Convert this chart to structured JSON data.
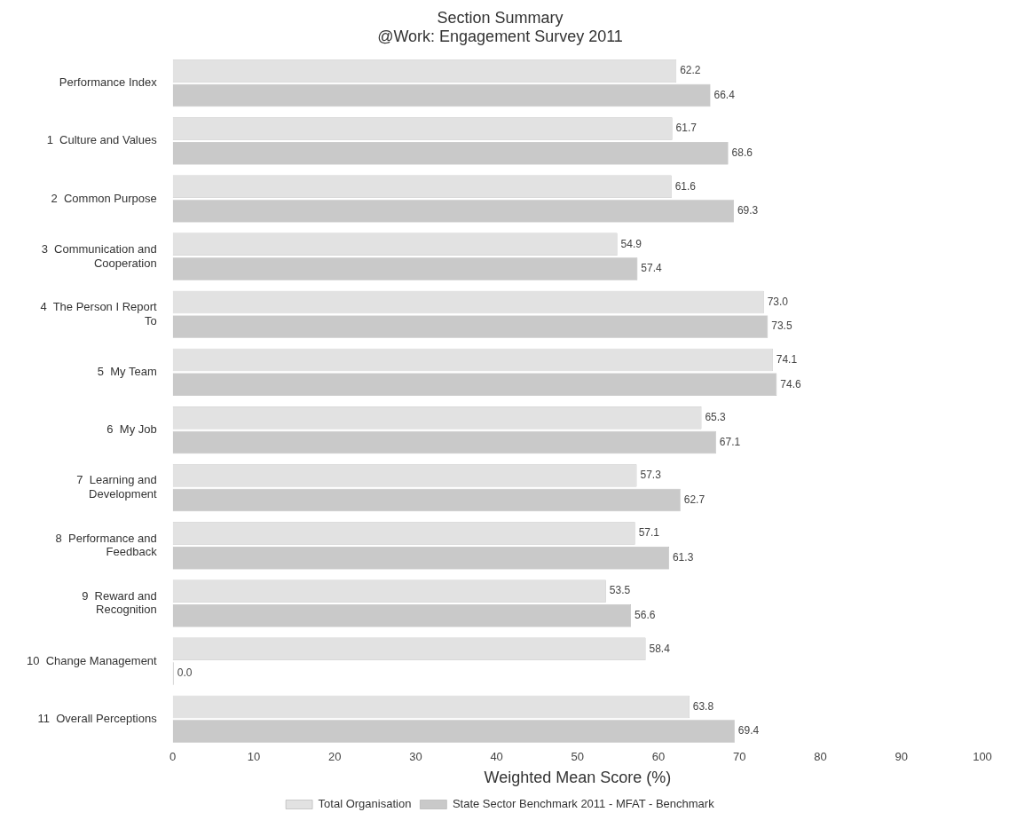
{
  "chart_data": {
    "type": "bar",
    "orientation": "horizontal",
    "title": "Section Summary",
    "subtitle": "@Work: Engagement Survey 2011",
    "xlabel": "Weighted Mean Score (%)",
    "categories": [
      "Performance Index",
      "1  Culture and Values",
      "2  Common Purpose",
      "3  Communication and Cooperation",
      "4  The Person I Report To",
      "5  My Team",
      "6  My Job",
      "7  Learning and Development",
      "8  Performance and Feedback",
      "9  Reward and Recognition",
      "10  Change Management",
      "11  Overall Perceptions"
    ],
    "series": [
      {
        "name": "Total Organisation",
        "color": "#e2e2e2",
        "values": [
          62.2,
          61.7,
          61.6,
          54.9,
          73.0,
          74.1,
          65.3,
          57.3,
          57.1,
          53.5,
          58.4,
          63.8
        ],
        "value_labels": [
          "62.2",
          "61.7",
          "61.6",
          "54.9",
          "73.0",
          "74.1",
          "65.3",
          "57.3",
          "57.1",
          "53.5",
          "58.4",
          "63.8"
        ]
      },
      {
        "name": "State Sector Benchmark 2011 - MFAT - Benchmark",
        "color": "#c9c9c9",
        "values": [
          66.4,
          68.6,
          69.3,
          57.4,
          73.5,
          74.6,
          67.1,
          62.7,
          61.3,
          56.6,
          0.0,
          69.4
        ],
        "value_labels": [
          "66.4",
          "68.6",
          "69.3",
          "57.4",
          "73.5",
          "74.6",
          "67.1",
          "62.7",
          "61.3",
          "56.6",
          "0.0",
          "69.4"
        ]
      }
    ],
    "xlim": [
      0,
      100
    ],
    "xticks": [
      0,
      10,
      20,
      30,
      40,
      50,
      60,
      70,
      80,
      90,
      100
    ],
    "grid": false,
    "legend": "bottom"
  }
}
